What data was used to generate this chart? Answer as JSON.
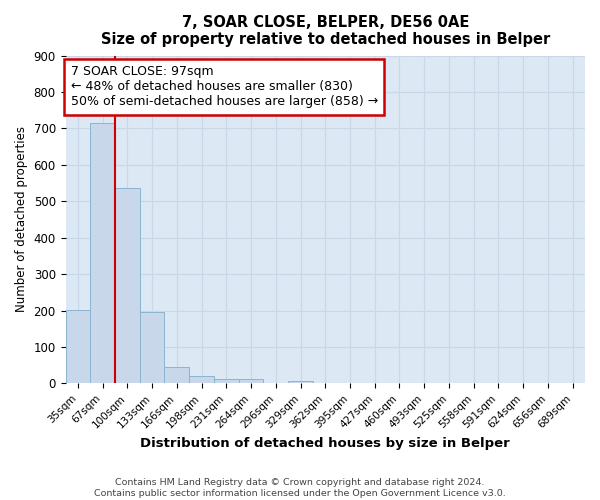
{
  "title": "7, SOAR CLOSE, BELPER, DE56 0AE",
  "subtitle": "Size of property relative to detached houses in Belper",
  "xlabel": "Distribution of detached houses by size in Belper",
  "ylabel": "Number of detached properties",
  "footer_line1": "Contains HM Land Registry data © Crown copyright and database right 2024.",
  "footer_line2": "Contains public sector information licensed under the Open Government Licence v3.0.",
  "bar_labels": [
    "35sqm",
    "67sqm",
    "100sqm",
    "133sqm",
    "166sqm",
    "198sqm",
    "231sqm",
    "264sqm",
    "296sqm",
    "329sqm",
    "362sqm",
    "395sqm",
    "427sqm",
    "460sqm",
    "493sqm",
    "525sqm",
    "558sqm",
    "591sqm",
    "624sqm",
    "656sqm",
    "689sqm"
  ],
  "bar_values": [
    203,
    714,
    537,
    195,
    46,
    20,
    12,
    11,
    0,
    8,
    0,
    0,
    0,
    0,
    0,
    0,
    0,
    0,
    0,
    0,
    0
  ],
  "bar_color": "#c8d8ea",
  "bar_edge_color": "#8ab4d0",
  "ylim": [
    0,
    900
  ],
  "yticks": [
    0,
    100,
    200,
    300,
    400,
    500,
    600,
    700,
    800,
    900
  ],
  "annotation_title": "7 SOAR CLOSE: 97sqm",
  "annotation_line1": "← 48% of detached houses are smaller (830)",
  "annotation_line2": "50% of semi-detached houses are larger (858) →",
  "annotation_box_color": "#ffffff",
  "annotation_box_edge": "#cc0000",
  "red_line_color": "#cc0000",
  "grid_color": "#c8d8e8",
  "plot_background": "#dce8f4",
  "figure_background": "#ffffff"
}
